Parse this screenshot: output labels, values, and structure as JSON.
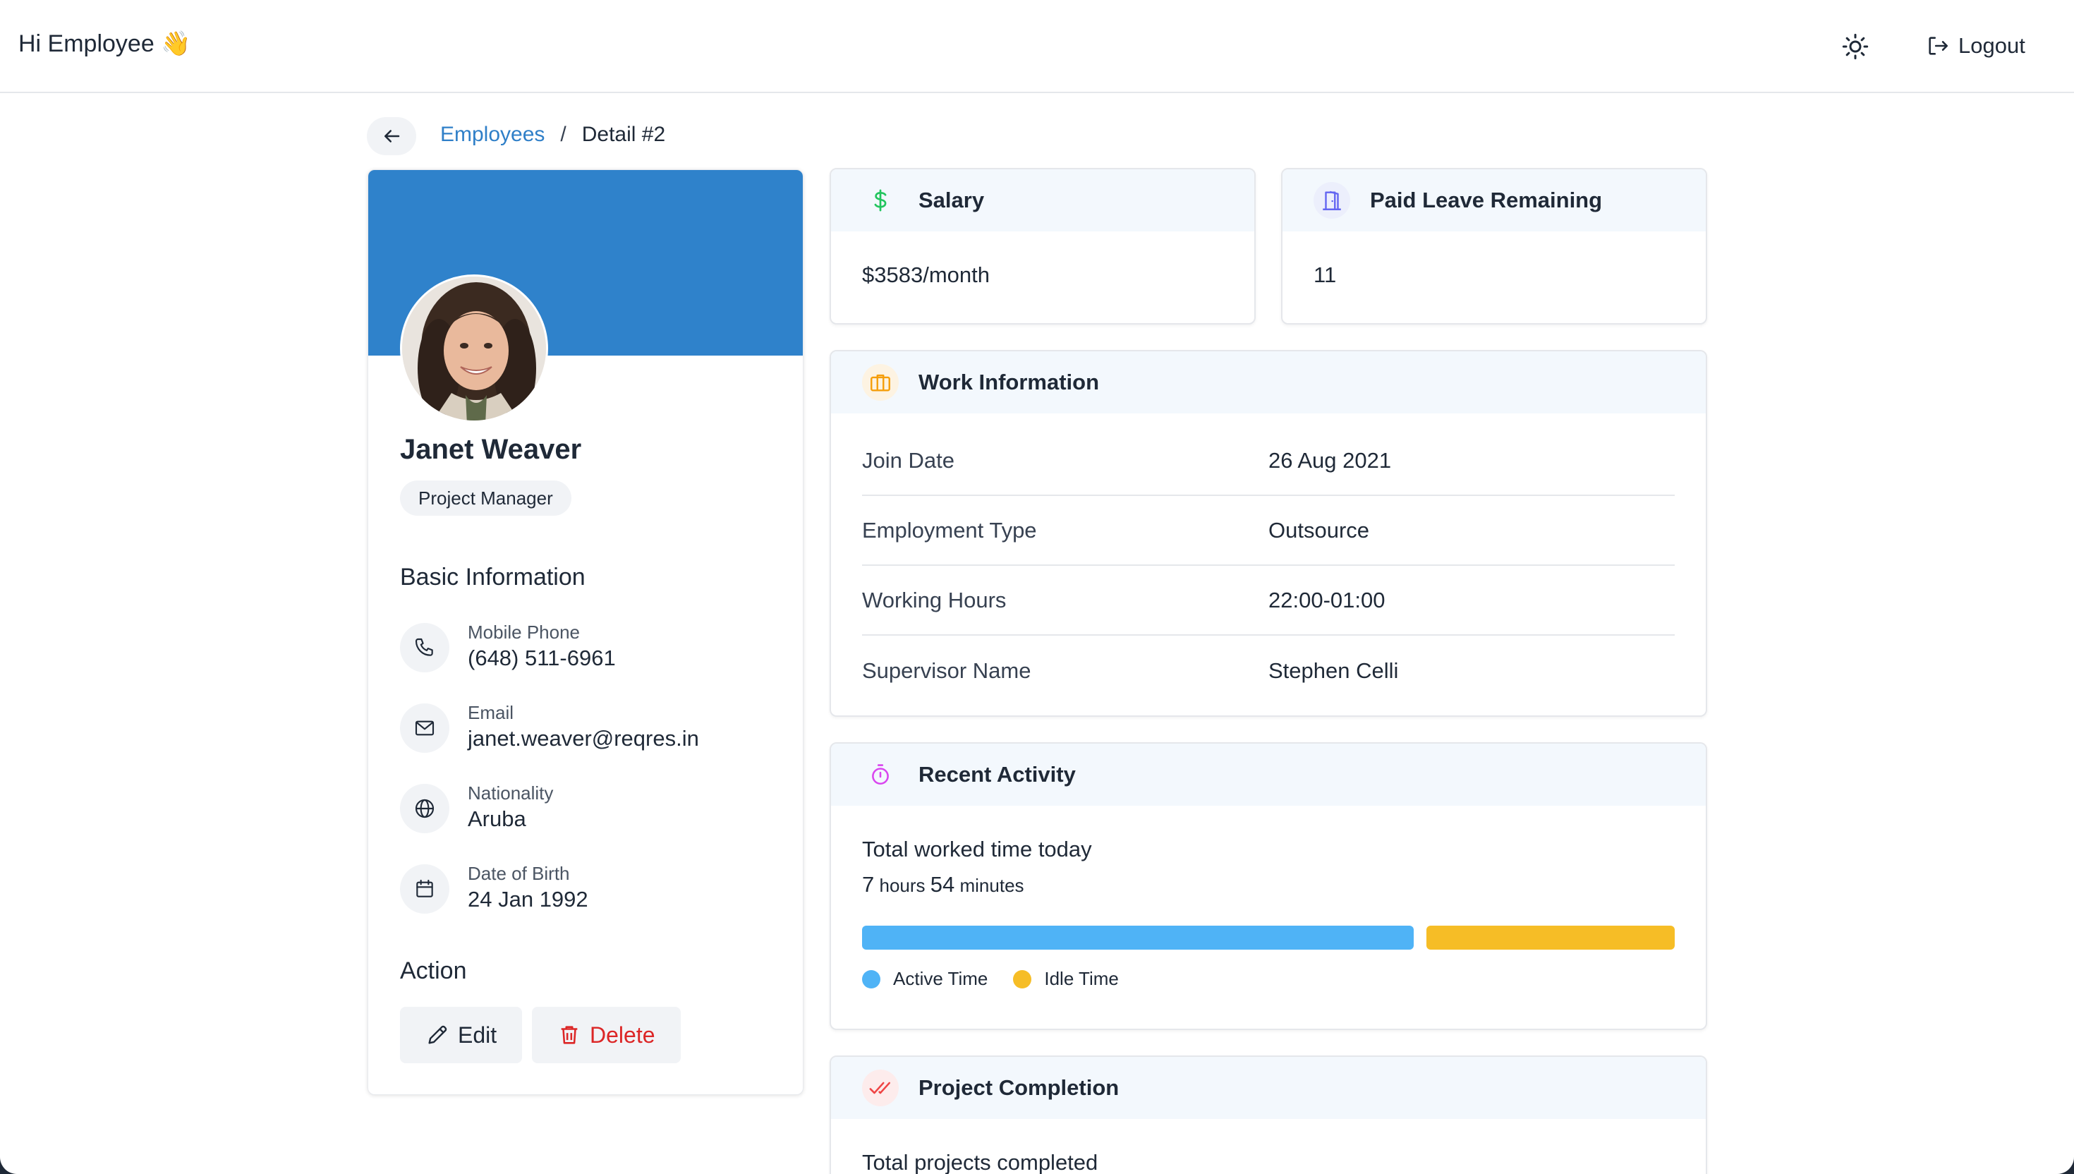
{
  "header": {
    "greeting": "Hi Employee 👋",
    "logout_label": "Logout"
  },
  "breadcrumb": {
    "parent": "Employees",
    "separator": "/",
    "current": "Detail #2"
  },
  "profile": {
    "name": "Janet Weaver",
    "role": "Project Manager",
    "basic_info_title": "Basic Information",
    "info": [
      {
        "label": "Mobile Phone",
        "value": "(648) 511-6961",
        "icon": "phone-icon"
      },
      {
        "label": "Email",
        "value": "janet.weaver@reqres.in",
        "icon": "mail-icon"
      },
      {
        "label": "Nationality",
        "value": "Aruba",
        "icon": "globe-icon"
      },
      {
        "label": "Date of Birth",
        "value": "24 Jan 1992",
        "icon": "calendar-icon"
      }
    ],
    "action_title": "Action",
    "edit_label": "Edit",
    "delete_label": "Delete"
  },
  "salary": {
    "title": "Salary",
    "value": "$3583/month",
    "icon": "dollar-icon"
  },
  "leave": {
    "title": "Paid Leave Remaining",
    "value": "11",
    "icon": "door-icon"
  },
  "work": {
    "title": "Work Information",
    "icon": "briefcase-icon",
    "rows": [
      {
        "key": "Join Date",
        "value": "26 Aug 2021"
      },
      {
        "key": "Employment Type",
        "value": "Outsource"
      },
      {
        "key": "Working Hours",
        "value": "22:00-01:00"
      },
      {
        "key": "Supervisor Name",
        "value": "Stephen Celli"
      }
    ]
  },
  "activity": {
    "title": "Recent Activity",
    "icon": "stopwatch-icon",
    "total_label": "Total worked time today",
    "hours": "7",
    "hours_unit": "hours",
    "minutes": "54",
    "minutes_unit": "minutes",
    "active_fraction": 0.69,
    "legend_active": "Active Time",
    "legend_idle": "Idle Time"
  },
  "projects": {
    "title": "Project Completion",
    "icon": "double-check-icon",
    "total_label": "Total projects completed"
  },
  "colors": {
    "primary": "#2f82cb",
    "link": "#2f7fc8",
    "active": "#4fb3f6",
    "idle": "#f6bd26",
    "danger": "#dc2626",
    "salary_icon": "#22c55e",
    "leave_icon": "#6366f1",
    "work_icon": "#f59e0b",
    "activity_icon": "#d946ef",
    "project_icon": "#ef4444"
  }
}
